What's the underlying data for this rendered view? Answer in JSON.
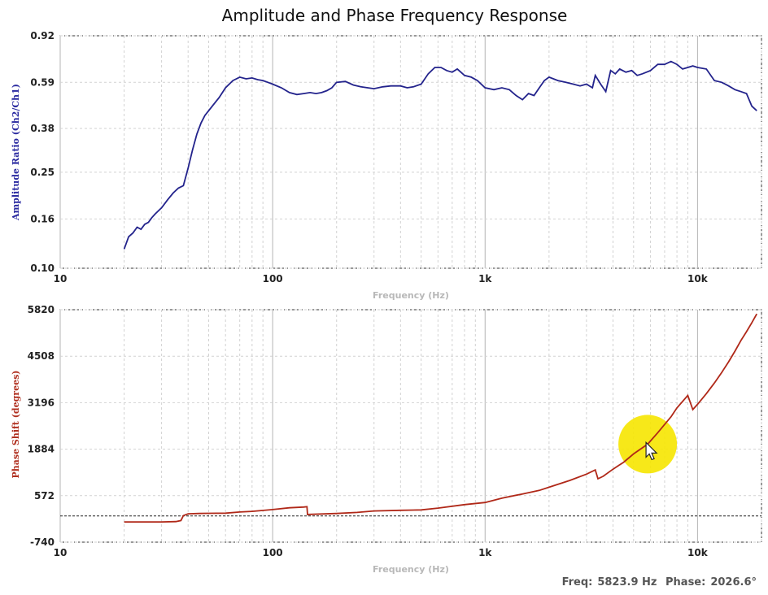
{
  "title": "Amplitude and Phase Frequency Response",
  "status": {
    "freq_label": "Freq:",
    "freq_value": "5823.9 Hz",
    "phase_label": "Phase:",
    "phase_value": "2026.6°"
  },
  "colors": {
    "amplitude": "#23238c",
    "phase": "#b02818",
    "cursor": "#f6e600"
  },
  "chart_data": [
    {
      "type": "line",
      "title": "Amplitude",
      "xlabel": "Frequency (Hz)",
      "ylabel": "Amplitude Ratio (Ch2/Ch1)",
      "xscale": "log",
      "yscale": "log",
      "xlim": [
        10,
        20000
      ],
      "ylim": [
        0.1,
        0.92
      ],
      "xticks": [
        10,
        100,
        1000,
        10000
      ],
      "xtick_labels": [
        "10",
        "100",
        "1k",
        "10k"
      ],
      "yticks": [
        0.1,
        0.16,
        0.25,
        0.38,
        0.59,
        0.92
      ],
      "ytick_labels": [
        "0.10",
        "0.16",
        "0.25",
        "0.38",
        "0.59",
        "0.92"
      ],
      "series": [
        {
          "name": "Amplitude Ratio",
          "x": [
            20,
            21,
            22,
            23,
            24,
            25,
            26,
            27,
            28,
            30,
            32,
            34,
            36,
            38,
            40,
            42,
            44,
            46,
            48,
            50,
            53,
            56,
            60,
            65,
            70,
            75,
            80,
            85,
            90,
            95,
            100,
            110,
            120,
            130,
            140,
            150,
            160,
            170,
            180,
            190,
            200,
            220,
            240,
            260,
            280,
            300,
            330,
            360,
            400,
            430,
            460,
            500,
            540,
            580,
            620,
            660,
            700,
            740,
            800,
            860,
            920,
            1000,
            1100,
            1200,
            1300,
            1400,
            1500,
            1600,
            1700,
            1800,
            1900,
            2000,
            2200,
            2400,
            2600,
            2800,
            3000,
            3200,
            3300,
            3500,
            3700,
            3900,
            4100,
            4300,
            4600,
            4900,
            5200,
            5500,
            6000,
            6500,
            7000,
            7500,
            8000,
            8500,
            9000,
            9500,
            10000,
            11000,
            12000,
            13000,
            14000,
            15000,
            16000,
            17000,
            18000,
            19000
          ],
          "values": [
            0.12,
            0.135,
            0.14,
            0.148,
            0.145,
            0.152,
            0.155,
            0.162,
            0.168,
            0.178,
            0.192,
            0.205,
            0.215,
            0.22,
            0.26,
            0.31,
            0.36,
            0.4,
            0.43,
            0.45,
            0.48,
            0.51,
            0.56,
            0.6,
            0.62,
            0.61,
            0.615,
            0.605,
            0.6,
            0.59,
            0.58,
            0.56,
            0.535,
            0.525,
            0.53,
            0.535,
            0.53,
            0.535,
            0.545,
            0.56,
            0.59,
            0.595,
            0.575,
            0.565,
            0.56,
            0.555,
            0.565,
            0.57,
            0.57,
            0.56,
            0.565,
            0.58,
            0.64,
            0.68,
            0.68,
            0.66,
            0.65,
            0.67,
            0.63,
            0.62,
            0.6,
            0.56,
            0.55,
            0.56,
            0.55,
            0.52,
            0.5,
            0.53,
            0.52,
            0.56,
            0.6,
            0.62,
            0.6,
            0.59,
            0.58,
            0.57,
            0.58,
            0.56,
            0.63,
            0.58,
            0.54,
            0.66,
            0.64,
            0.67,
            0.65,
            0.66,
            0.63,
            0.64,
            0.66,
            0.7,
            0.7,
            0.72,
            0.7,
            0.67,
            0.68,
            0.69,
            0.68,
            0.67,
            0.6,
            0.59,
            0.57,
            0.55,
            0.54,
            0.53,
            0.47,
            0.45
          ]
        }
      ]
    },
    {
      "type": "line",
      "title": "Phase",
      "xlabel": "Frequency (Hz)",
      "ylabel": "Phase Shift (degrees)",
      "xscale": "log",
      "xlim": [
        10,
        20000
      ],
      "ylim": [
        -740,
        5820
      ],
      "xticks": [
        10,
        100,
        1000,
        10000
      ],
      "xtick_labels": [
        "10",
        "100",
        "1k",
        "10k"
      ],
      "yticks": [
        -740,
        572,
        1884,
        3196,
        4508,
        5820
      ],
      "ytick_labels": [
        "-740",
        "572",
        "1884",
        "3196",
        "4508",
        "5820"
      ],
      "reference_line": 0,
      "series": [
        {
          "name": "Phase Shift",
          "x": [
            20,
            25,
            30,
            35,
            37,
            38,
            40,
            45,
            50,
            60,
            70,
            80,
            100,
            120,
            140,
            145,
            146,
            150,
            200,
            250,
            300,
            400,
            500,
            600,
            800,
            1000,
            1200,
            1500,
            1800,
            2000,
            2500,
            3000,
            3300,
            3400,
            3600,
            4000,
            4500,
            5000,
            5824,
            6500,
            7500,
            8000,
            9000,
            9500,
            10000,
            11000,
            12000,
            13000,
            14000,
            15000,
            16000,
            17000,
            18000,
            19000
          ],
          "values": [
            -170,
            -170,
            -170,
            -160,
            -130,
            10,
            60,
            70,
            75,
            80,
            110,
            130,
            180,
            230,
            250,
            260,
            40,
            45,
            70,
            100,
            140,
            160,
            170,
            220,
            320,
            380,
            500,
            620,
            720,
            810,
            1000,
            1180,
            1300,
            1050,
            1120,
            1320,
            1520,
            1750,
            2027,
            2350,
            2800,
            3050,
            3400,
            3000,
            3150,
            3450,
            3750,
            4050,
            4350,
            4650,
            4950,
            5200,
            5450,
            5700
          ]
        }
      ],
      "cursor": {
        "x": 5823.9,
        "y": 2026.6
      }
    }
  ]
}
